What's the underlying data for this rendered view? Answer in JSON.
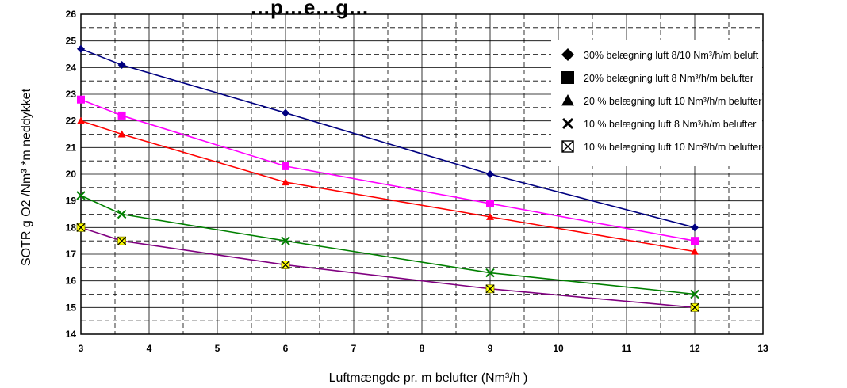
{
  "chart_data": {
    "type": "line",
    "title": "…p…e…g…",
    "xlabel": "Luftmængde pr. m belufter (Nm³/h )",
    "ylabel": "SOTR  g O2 /Nm³ *m  neddykket",
    "xlim": [
      3,
      13
    ],
    "ylim": [
      14,
      26
    ],
    "x_ticks": [
      "3",
      "4",
      "5",
      "6",
      "7",
      "8",
      "9",
      "10",
      "11",
      "12",
      "13"
    ],
    "y_ticks": [
      "14",
      "15",
      "16",
      "17",
      "18",
      "19",
      "20",
      "21",
      "22",
      "23",
      "24",
      "25",
      "26"
    ],
    "grid": true,
    "legend_position": "top-right",
    "x": [
      3,
      3.6,
      6,
      9,
      12
    ],
    "series": [
      {
        "name": "30% belægning  luft 8/10 Nm³/h/m beluft",
        "values": [
          24.7,
          24.1,
          22.3,
          20.0,
          18.0
        ],
        "color": "#000080",
        "marker": "diamond",
        "marker_color": "#000080"
      },
      {
        "name": "20% belægning  luft 8 Nm³/h/m belufter",
        "values": [
          22.8,
          22.2,
          20.3,
          18.9,
          17.5
        ],
        "color": "#ff00ff",
        "marker": "square",
        "marker_color": "#ff00ff"
      },
      {
        "name": "20 % belægning  luft 10 Nm³/h/m belufter",
        "values": [
          22.0,
          21.5,
          19.7,
          18.4,
          17.1
        ],
        "color": "#ff0000",
        "marker": "triangle",
        "marker_color": "#ff0000"
      },
      {
        "name": "10 % belægning luft 8 Nm³/h/m belufter",
        "values": [
          19.2,
          18.5,
          17.5,
          16.3,
          15.5
        ],
        "color": "#008000",
        "marker": "x",
        "marker_color": "#008000"
      },
      {
        "name": "10 % belægning  luft 10 Nm³/h/m belufter",
        "values": [
          18.0,
          17.5,
          16.6,
          15.7,
          15.0
        ],
        "color": "#800080",
        "marker": "boxed-x",
        "marker_color": "#ffff00"
      }
    ]
  }
}
